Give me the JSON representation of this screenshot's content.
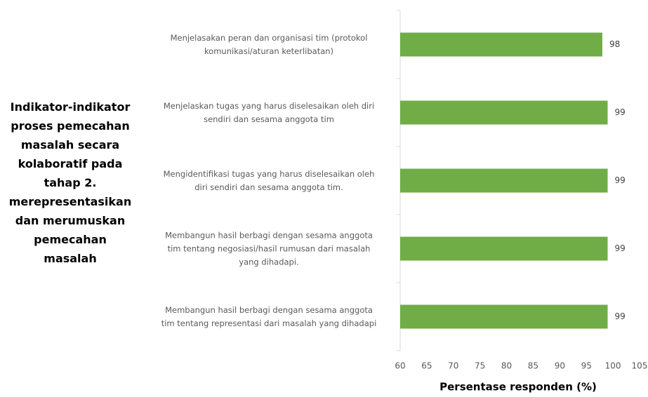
{
  "chart_data": {
    "type": "barh",
    "y_label": "Indikator-indikator\nproses pemecahan\nmasalah secara\nkolaboratif pada\ntahap 2.\nmerepresentasikan\ndan merumuskan\npemecahan\nmasalah",
    "x_label": "Persentase  responden (%)",
    "categories": [
      "Menjelasakan peran dan organisasi tim (protokol\nkomunikasi/aturan keterlibatan)",
      "Menjelaskan tugas yang harus diselesaikan oleh diri\nsendiri dan sesama anggota tim",
      "Mengidentifikasi tugas yang harus diselesaikan oleh\ndiri sendiri dan sesama anggota tim.",
      "Membangun hasil berbagi dengan sesama anggota\ntim tentang negosiasi/hasil rumusan dari masalah\nyang dihadapi.",
      "Membangun hasil berbagi dengan sesama anggota\ntim tentang representasi dari masalah yang dihadapi"
    ],
    "values": [
      98,
      99,
      99,
      99,
      99
    ],
    "color": "#70ad47",
    "xlim": [
      60,
      105
    ],
    "xticks": [
      60,
      65,
      70,
      75,
      80,
      85,
      90,
      95,
      100,
      105
    ]
  }
}
